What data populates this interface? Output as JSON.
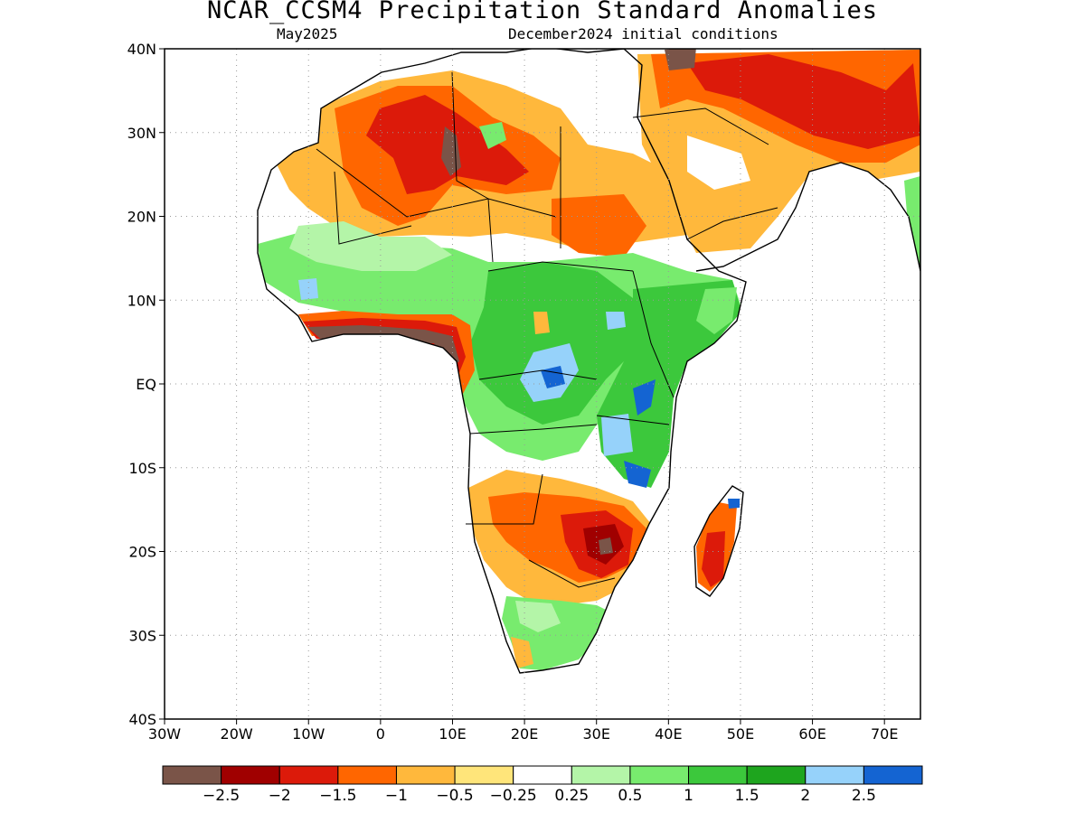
{
  "title": "NCAR_CCSM4 Precipitation Standard Anomalies",
  "subtitle_left": "May2025",
  "subtitle_right": "December2024 initial conditions",
  "map": {
    "lon_range": [
      -30,
      75
    ],
    "lat_range": [
      -40,
      40
    ],
    "lat_ticks": [
      {
        "value": 40,
        "label": "40N"
      },
      {
        "value": 30,
        "label": "30N"
      },
      {
        "value": 20,
        "label": "20N"
      },
      {
        "value": 10,
        "label": "10N"
      },
      {
        "value": 0,
        "label": "EQ"
      },
      {
        "value": -10,
        "label": "10S"
      },
      {
        "value": -20,
        "label": "20S"
      },
      {
        "value": -30,
        "label": "30S"
      },
      {
        "value": -40,
        "label": "40S"
      }
    ],
    "lon_ticks": [
      {
        "value": -30,
        "label": "30W"
      },
      {
        "value": -20,
        "label": "20W"
      },
      {
        "value": -10,
        "label": "10W"
      },
      {
        "value": 0,
        "label": "0"
      },
      {
        "value": 10,
        "label": "10E"
      },
      {
        "value": 20,
        "label": "20E"
      },
      {
        "value": 30,
        "label": "30E"
      },
      {
        "value": 40,
        "label": "40E"
      },
      {
        "value": 50,
        "label": "50E"
      },
      {
        "value": 60,
        "label": "60E"
      },
      {
        "value": 70,
        "label": "70E"
      }
    ]
  },
  "legend": {
    "colors": [
      "#7a5448",
      "#a00000",
      "#dc1a0a",
      "#ff6600",
      "#ffb83c",
      "#ffe57a",
      "#ffffff",
      "#b4f5a8",
      "#78eb6e",
      "#3cc83c",
      "#1ea51e",
      "#96d2fa",
      "#1464d2"
    ],
    "labels": [
      "-2.5",
      "-2",
      "-1.5",
      "-1",
      "-0.5",
      "-0.25",
      "0.25",
      "0.5",
      "1",
      "1.5",
      "2",
      "2.5"
    ]
  },
  "anomaly_regions": [
    {
      "name": "sahara-dry",
      "level": "-1",
      "color": "#ff6600"
    },
    {
      "name": "central-sahara-core",
      "level": "-1.5",
      "color": "#dc1a0a"
    },
    {
      "name": "arabia-dry",
      "level": "-1",
      "color": "#ff6600"
    },
    {
      "name": "iran-dry",
      "level": "-1.5",
      "color": "#dc1a0a"
    },
    {
      "name": "guinea-coast-dry",
      "level": "-2.5",
      "color": "#7a5448"
    },
    {
      "name": "sahel-wet",
      "level": "1",
      "color": "#78eb6e"
    },
    {
      "name": "central-africa-wet",
      "level": "1.5",
      "color": "#3cc83c"
    },
    {
      "name": "congo-wet-core",
      "level": "2.5",
      "color": "#1464d2"
    },
    {
      "name": "east-africa-wet",
      "level": "1.5",
      "color": "#3cc83c"
    },
    {
      "name": "southern-africa-dry",
      "level": "-1",
      "color": "#ff6600"
    },
    {
      "name": "zimbabwe-dry-core",
      "level": "-2",
      "color": "#a00000"
    },
    {
      "name": "madagascar-dry",
      "level": "-1.5",
      "color": "#dc1a0a"
    },
    {
      "name": "south-africa-wet",
      "level": "1",
      "color": "#78eb6e"
    }
  ]
}
